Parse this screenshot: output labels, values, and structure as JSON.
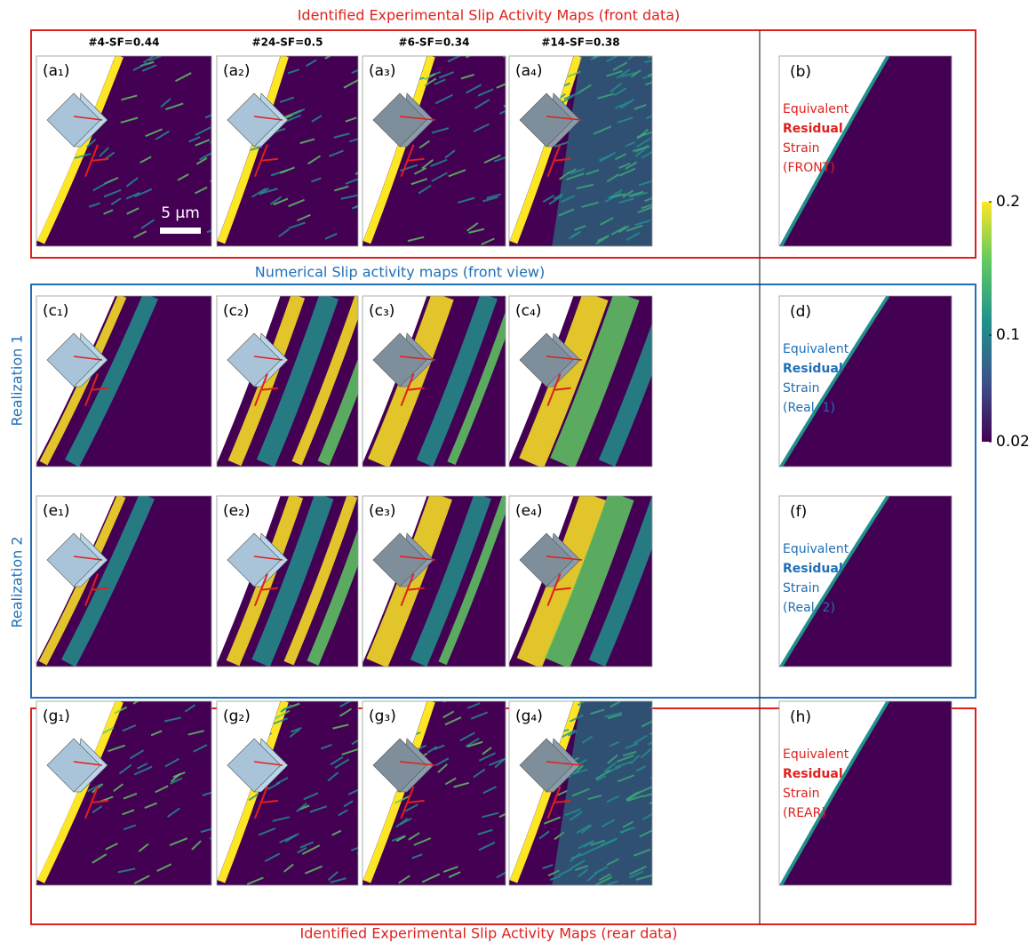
{
  "top_title": "Identified Experimental Slip Activity Maps (front data)",
  "middle_title": "Numerical Slip activity maps (front view)",
  "bottom_title": "Identified Experimental Slip Activity Maps (rear data)",
  "column_headers": [
    "#4-SF=0.44",
    "#24-SF=0.5",
    "#6-SF=0.34",
    "#14-SF=0.38"
  ],
  "row_labels": [
    "Realization 1",
    "Realization 2"
  ],
  "scale_bar": "5 µm",
  "rows": [
    {
      "color": "#e0201b",
      "panels": [
        "(a₁)",
        "(a₂)",
        "(a₃)",
        "(a₄)"
      ],
      "side": {
        "label": "(b)",
        "lines": [
          "Equivalent",
          "Residual",
          "Strain",
          "(FRONT)"
        ]
      }
    },
    {
      "color": "#1f6fb7",
      "panels": [
        "(c₁)",
        "(c₂)",
        "(c₃)",
        "(c₄)"
      ],
      "side": {
        "label": "(d)",
        "lines": [
          "Equivalent",
          "Residual",
          "Strain",
          "(Real. 1)"
        ]
      }
    },
    {
      "color": "#1f6fb7",
      "panels": [
        "(e₁)",
        "(e₂)",
        "(e₃)",
        "(e₄)"
      ],
      "side": {
        "label": "(f)",
        "lines": [
          "Equivalent",
          "Residual",
          "Strain",
          "(Real. 2)"
        ]
      }
    },
    {
      "color": "#e0201b",
      "panels": [
        "(g₁)",
        "(g₂)",
        "(g₃)",
        "(g₄)"
      ],
      "side": {
        "label": "(h)",
        "lines": [
          "Equivalent",
          "Residual",
          "Strain",
          "(REAR)"
        ]
      }
    }
  ],
  "colorbar": {
    "lim": [
      0.02,
      0.2
    ],
    "ticks": [
      0.2,
      0.1,
      0.02
    ]
  }
}
